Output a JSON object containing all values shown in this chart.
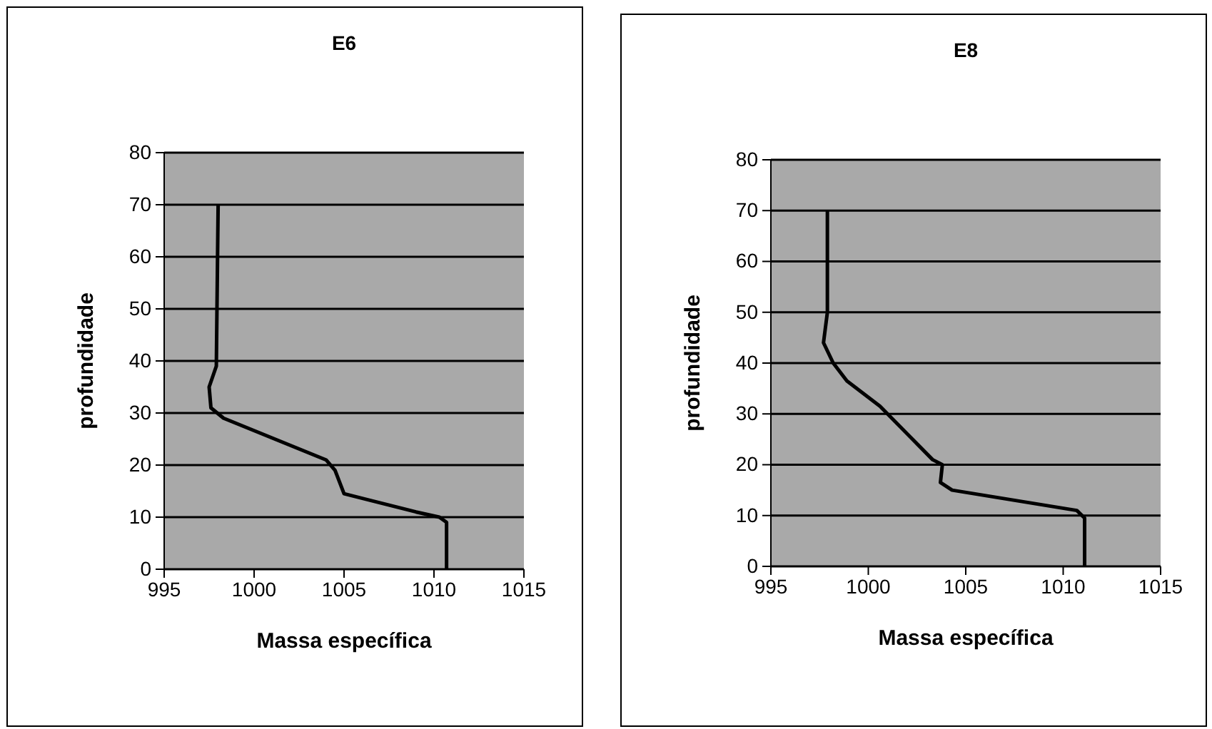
{
  "chart_data": [
    {
      "type": "line",
      "title": "E6",
      "xlabel": "Massa específica",
      "ylabel": "profundidade",
      "xlim": [
        995,
        1015
      ],
      "xticks": [
        995,
        1000,
        1005,
        1010,
        1015
      ],
      "ylim": [
        0,
        80
      ],
      "yticks": [
        0,
        10,
        20,
        30,
        40,
        50,
        60,
        70,
        80
      ],
      "grid": "y",
      "marker": "none",
      "line_style": "solid",
      "series": [
        {
          "color": "#000000",
          "x": [
            1010.7,
            1010.7,
            1010.3,
            1009,
            1005,
            1004.5,
            1004,
            998.3,
            997.6,
            997.5,
            997.9,
            998
          ],
          "values": [
            0,
            9,
            10,
            11,
            14.5,
            19,
            21,
            29,
            31,
            35,
            39,
            70
          ]
        }
      ]
    },
    {
      "type": "line",
      "title": "E8",
      "xlabel": "Massa específica",
      "ylabel": "profundidade",
      "xlim": [
        995,
        1015
      ],
      "xticks": [
        995,
        1000,
        1005,
        1010,
        1015
      ],
      "ylim": [
        0,
        80
      ],
      "yticks": [
        0,
        10,
        20,
        30,
        40,
        50,
        60,
        70,
        80
      ],
      "grid": "y",
      "marker": "none",
      "line_style": "solid",
      "series": [
        {
          "color": "#000000",
          "x": [
            1011.1,
            1011.1,
            1010.7,
            1004.3,
            1003.7,
            1003.8,
            1003.3,
            1000.6,
            998.9,
            998.2,
            997.7,
            997.9,
            997.9
          ],
          "values": [
            0,
            9.5,
            11,
            15,
            16.5,
            20,
            21,
            31.5,
            36.5,
            40,
            44,
            50,
            70
          ]
        }
      ]
    }
  ]
}
